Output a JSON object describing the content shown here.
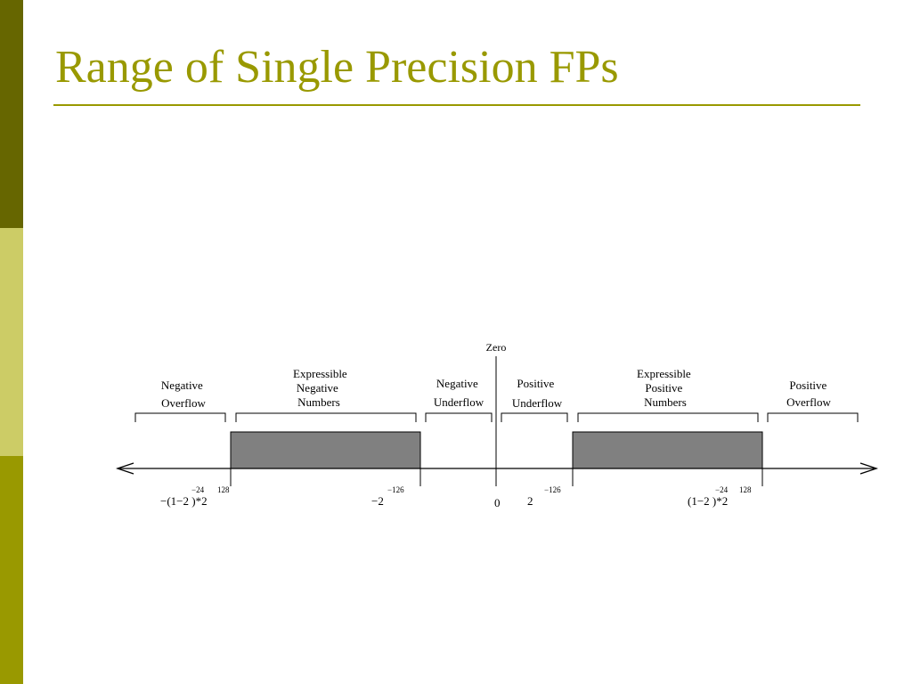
{
  "slide": {
    "title": "Range of Single Precision FPs",
    "colors": {
      "title": "#999900",
      "rule": "#999900",
      "sidebar_dark": "#666600",
      "sidebar_light": "#cccc66",
      "sidebar_mid": "#999900",
      "filled_region": "#808080"
    }
  },
  "diagram": {
    "zero_label": "Zero",
    "regions": [
      {
        "lines": [
          "Negative",
          "Overflow"
        ]
      },
      {
        "lines": [
          "Expressible",
          "Negative",
          "Numbers"
        ]
      },
      {
        "lines": [
          "Negative",
          "Underflow"
        ]
      },
      {
        "lines": [
          "Positive",
          "Underflow"
        ]
      },
      {
        "lines": [
          "Expressible",
          "Positive",
          "Numbers"
        ]
      },
      {
        "lines": [
          "Positive",
          "Overflow"
        ]
      }
    ],
    "ticks": {
      "neg_max": {
        "base": "−(1−2   )*2",
        "exp1": "−24",
        "exp2": "128"
      },
      "neg_min": {
        "base": "−2",
        "exp": "−126"
      },
      "zero": {
        "base": "0"
      },
      "pos_min": {
        "base": "2",
        "exp": "−126"
      },
      "pos_max": {
        "base": "(1−2   )*2",
        "exp1": "−24",
        "exp2": "128"
      }
    }
  }
}
